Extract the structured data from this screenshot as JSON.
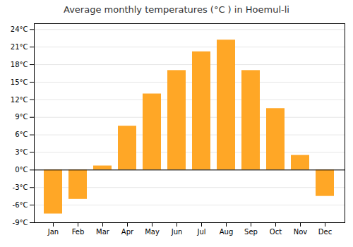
{
  "chart_data": {
    "type": "bar",
    "title": "Average monthly temperatures (°C ) in Hoemul-li",
    "categories": [
      "Jan",
      "Feb",
      "Mar",
      "Apr",
      "May",
      "Jun",
      "Jul",
      "Aug",
      "Sep",
      "Oct",
      "Nov",
      "Dec"
    ],
    "values": [
      -7.5,
      -5.0,
      0.7,
      7.5,
      13.0,
      17.0,
      20.2,
      22.2,
      17.0,
      10.5,
      2.5,
      -4.5
    ],
    "color": "#FFA726",
    "ylim": [
      -9,
      25
    ],
    "yticks": [
      {
        "value": -9,
        "label": "-9°C"
      },
      {
        "value": -6,
        "label": "-6°C"
      },
      {
        "value": -3,
        "label": "-3°C"
      },
      {
        "value": 0,
        "label": "0°C"
      },
      {
        "value": 3,
        "label": "3°C"
      },
      {
        "value": 6,
        "label": "6°C"
      },
      {
        "value": 9,
        "label": "9°C"
      },
      {
        "value": 12,
        "label": "12°C"
      },
      {
        "value": 15,
        "label": "15°C"
      },
      {
        "value": 18,
        "label": "18°C"
      },
      {
        "value": 21,
        "label": "21°C"
      },
      {
        "value": 24,
        "label": "24°C"
      }
    ],
    "grid": true
  }
}
